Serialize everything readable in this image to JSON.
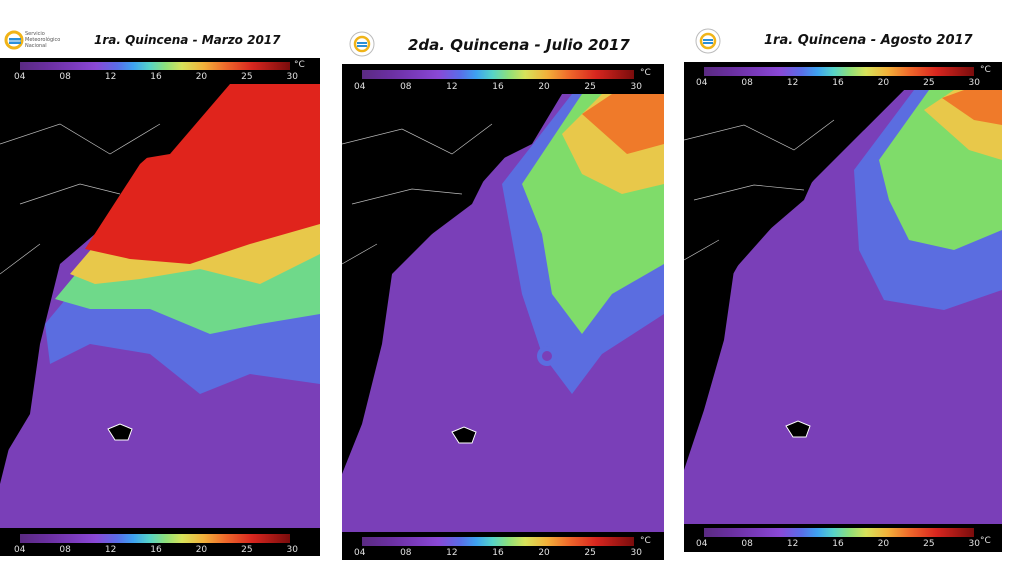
{
  "panels": [
    {
      "id": "marzo",
      "title": "1ra. Quincena - Marzo 2017",
      "logo_lines": [
        "Servicio",
        "Meteorológico",
        "Nacional"
      ],
      "ticks": [
        "04",
        "08",
        "12",
        "16",
        "20",
        "25",
        "30"
      ],
      "unit": "°C"
    },
    {
      "id": "julio",
      "title": "2da. Quincena - Julio 2017",
      "ticks": [
        "04",
        "08",
        "12",
        "16",
        "20",
        "25",
        "30"
      ],
      "unit": "°C"
    },
    {
      "id": "agosto",
      "title": "1ra. Quincena - Agosto 2017",
      "ticks": [
        "04",
        "08",
        "12",
        "16",
        "20",
        "25",
        "30"
      ],
      "unit": "°C"
    }
  ],
  "colors": {
    "land": "#000000",
    "cold": "#7a3fb8",
    "cool": "#5b6de0",
    "mild": "#4fc7c0",
    "warm_green": "#7fdc6a",
    "yellow": "#e8d84a",
    "orange": "#ef7a2a",
    "hot": "#e0241c"
  }
}
